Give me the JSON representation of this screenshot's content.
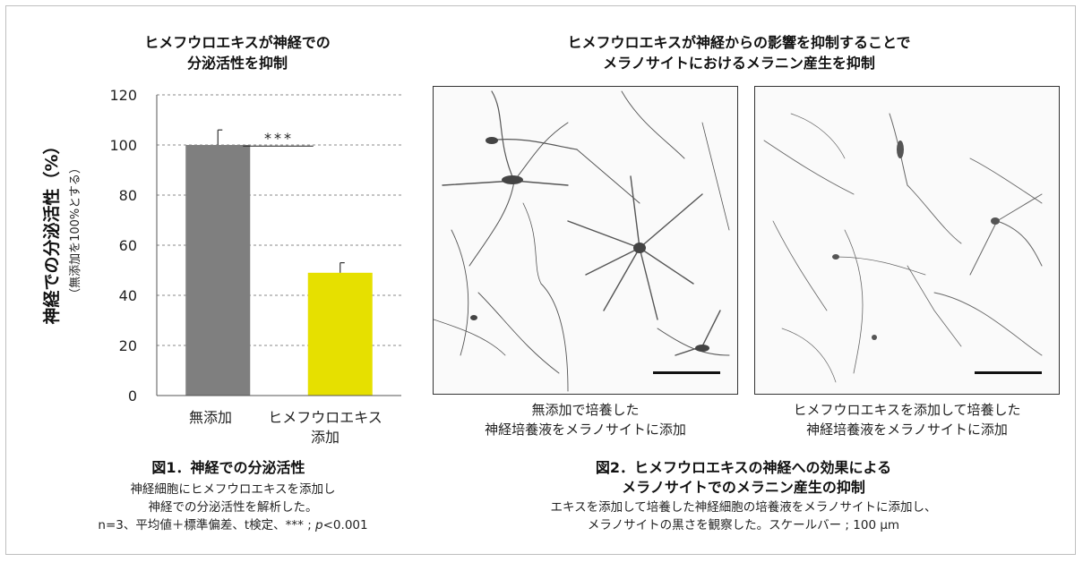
{
  "chart_data": {
    "type": "bar",
    "title_lines": [
      "ヒメフウロエキスが神経での",
      "分泌活性を抑制"
    ],
    "ylabel": "神経での分泌活性（%）",
    "ylabel_sub": "（無添加を100%とする）",
    "ylim": [
      0,
      120
    ],
    "yticks": [
      "0",
      "20",
      "40",
      "60",
      "80",
      "100",
      "120"
    ],
    "categories": [
      "無添加",
      "ヒメフウロエキス\n添加"
    ],
    "category_lines": [
      [
        "無添加"
      ],
      [
        "ヒメフウロエキス",
        "添加"
      ]
    ],
    "values": [
      100,
      49
    ],
    "errors": [
      6,
      4
    ],
    "colors": [
      "#7f7f7f",
      "#e6e000"
    ],
    "grid": "horizontal-dashed",
    "significance": "***"
  },
  "figure1": {
    "caption_title": "図1．神経での分泌活性",
    "caption_lines": [
      "神経細胞にヒメフウロエキスを添加し",
      "神経での分泌活性を解析した。"
    ],
    "stats_prefix": "n=3、平均値＋標準偏差、t検定、*** ; ",
    "stats_p": "p",
    "stats_suffix": "<0.001"
  },
  "figure2": {
    "title_lines": [
      "ヒメフウロエキスが神経からの影響を抑制することで",
      "メラノサイトにおけるメラニン産生を抑制"
    ],
    "panel_left_label": [
      "無添加で培養した",
      "神経培養液をメラノサイトに添加"
    ],
    "panel_right_label": [
      "ヒメフウロエキスを添加して培養した",
      "神経培養液をメラノサイトに添加"
    ],
    "caption_title": [
      "図2．ヒメフウロエキスの神経への効果による",
      "メラノサイトでのメラニン産生の抑制"
    ],
    "caption_lines": [
      "エキスを添加して培養した神経細胞の培養液をメラノサイトに添加し、",
      "メラノサイトの黒さを観察した。スケールバー ; 100 µm"
    ]
  }
}
